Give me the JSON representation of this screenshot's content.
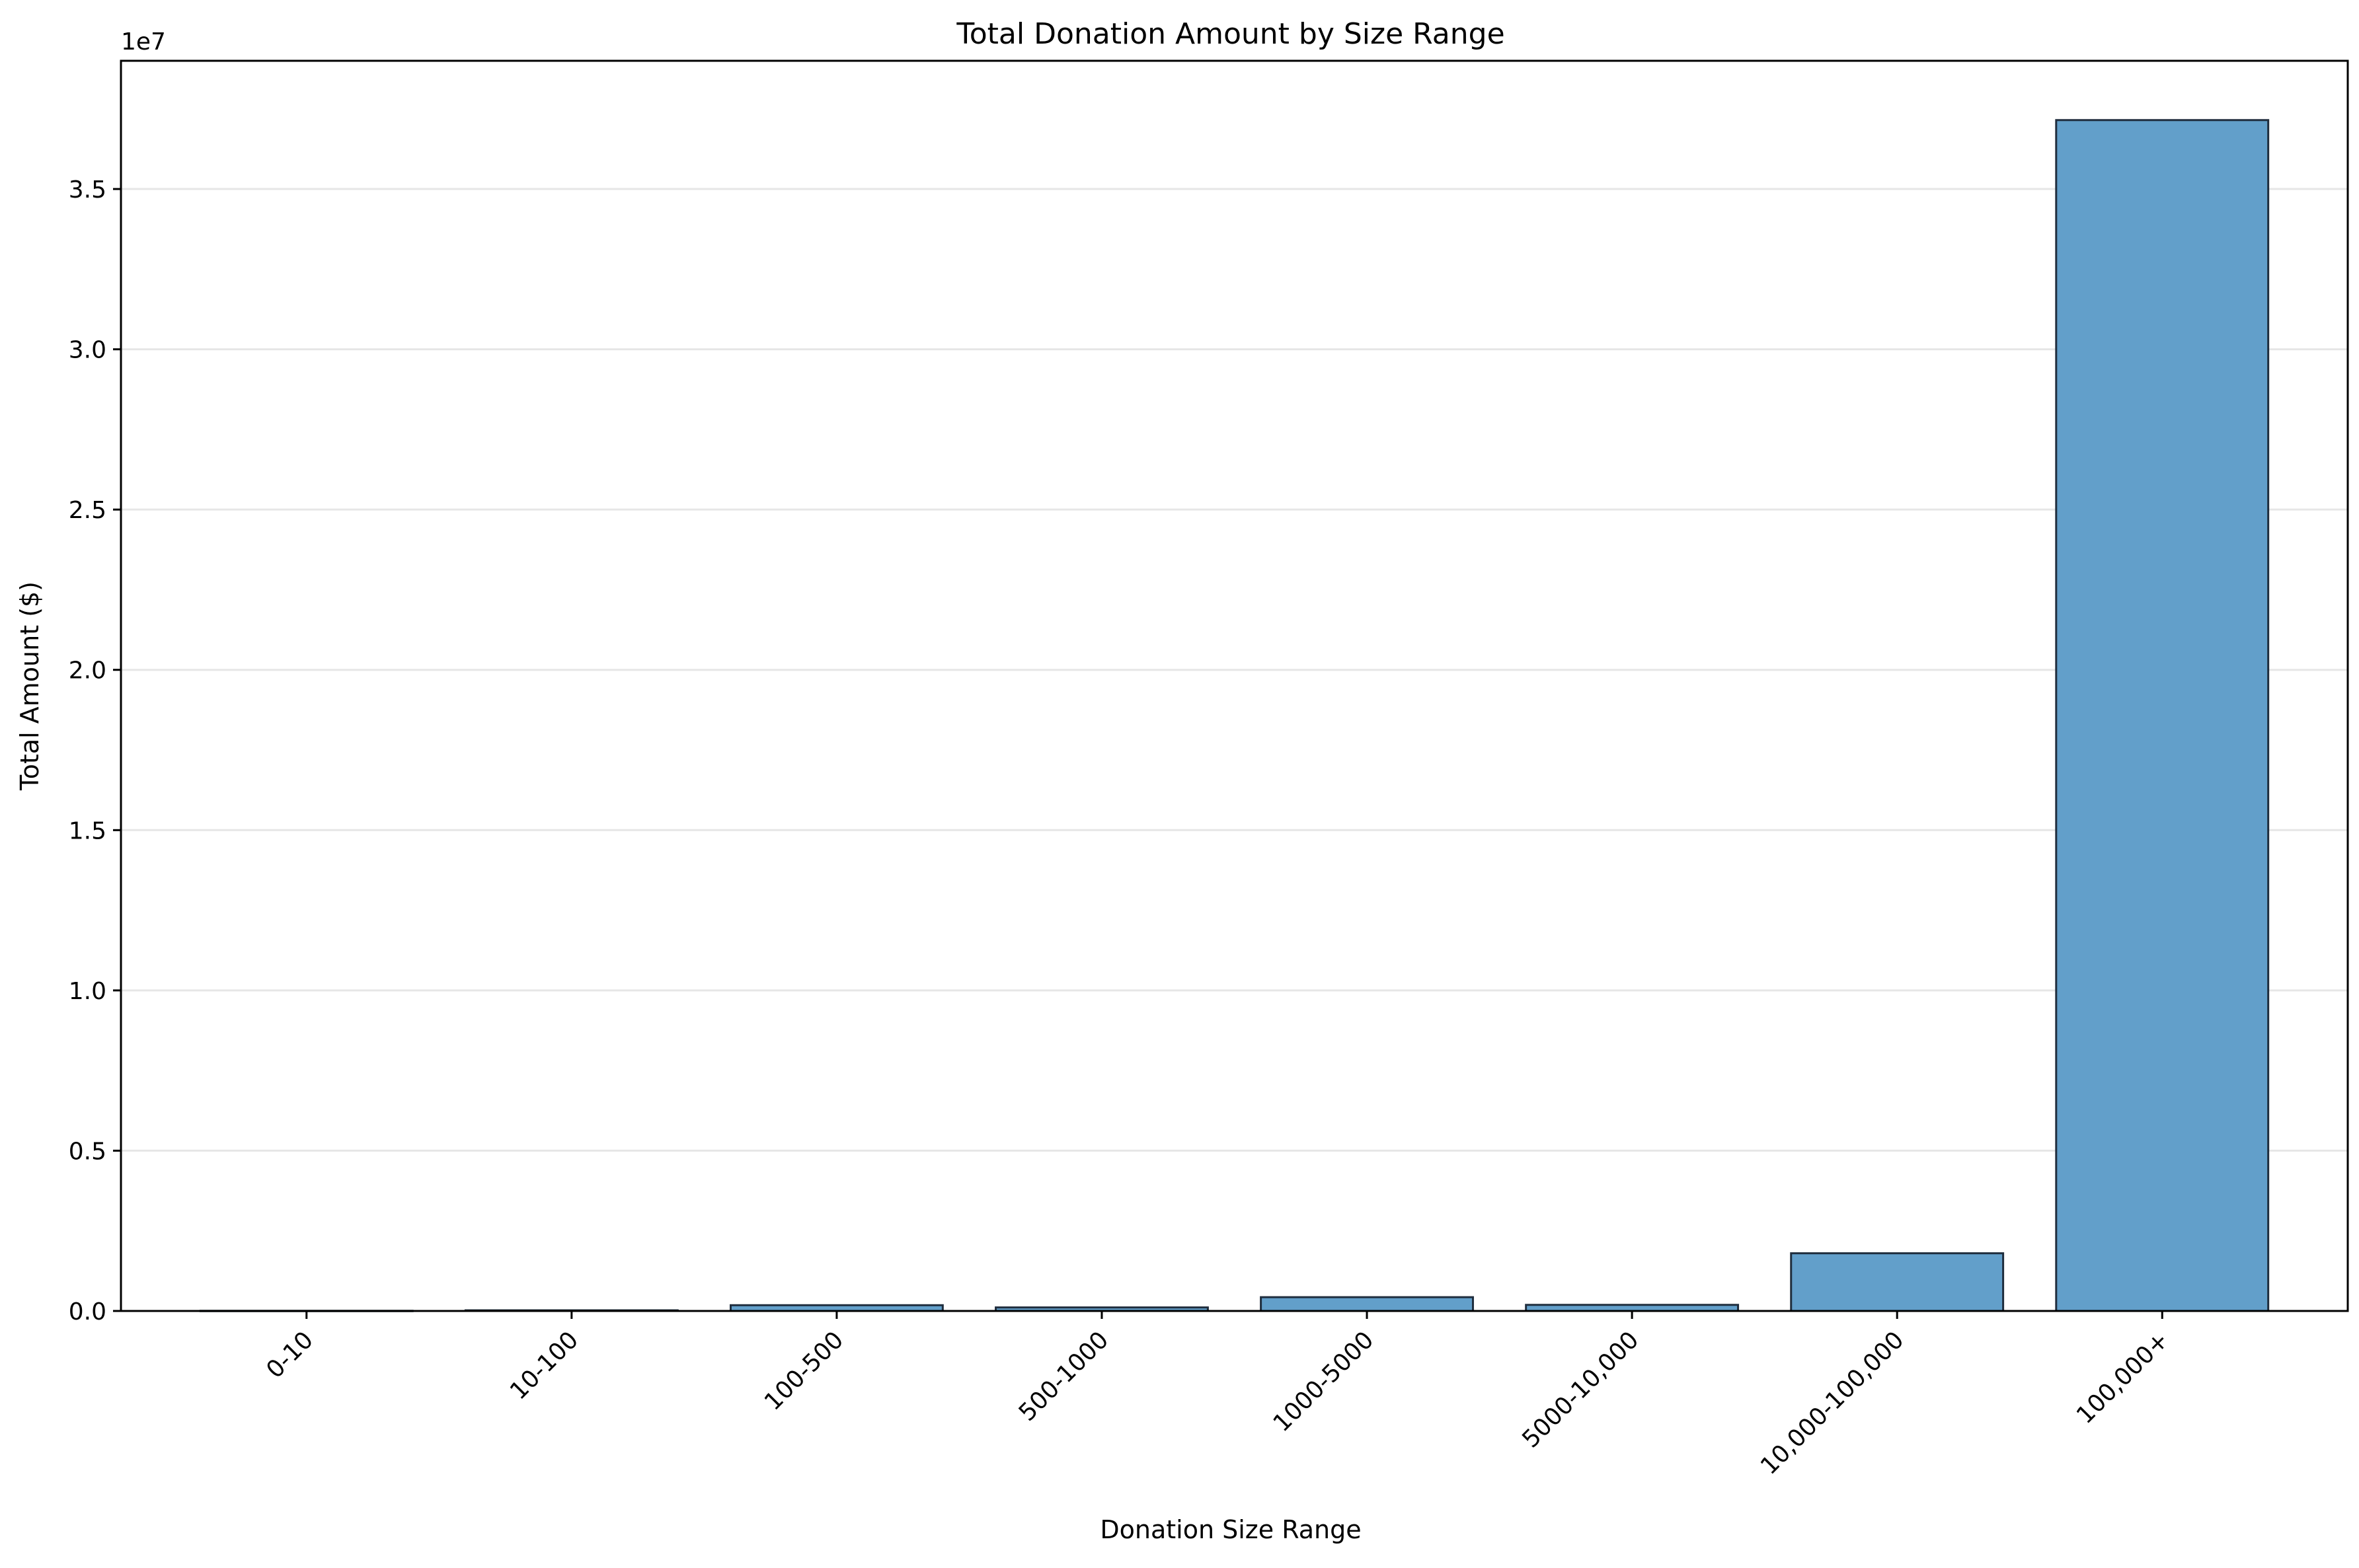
{
  "chart_data": {
    "type": "bar",
    "title": "Total Donation Amount by Size Range",
    "xlabel": "Donation Size Range",
    "ylabel": "Total Amount ($)",
    "y_offset_label": "1e7",
    "categories": [
      "0-10",
      "10-100",
      "100-500",
      "500-1000",
      "1000-5000",
      "5000-10,000",
      "10,000-100,000",
      "100,000+"
    ],
    "values": [
      5000,
      20000,
      180000,
      110000,
      430000,
      190000,
      1800000,
      37150000
    ],
    "ylim": [
      0,
      39000000
    ],
    "yticks": [
      0,
      5000000,
      10000000,
      15000000,
      20000000,
      25000000,
      30000000,
      35000000
    ],
    "ytick_labels": [
      "0.0",
      "0.5",
      "1.0",
      "1.5",
      "2.0",
      "2.5",
      "3.0",
      "3.5"
    ],
    "grid": "y",
    "legend": "none",
    "colors": {
      "bar_fill": "#629fca",
      "bar_edge": "#1f2d3d",
      "grid": "#e6e6e6"
    }
  }
}
